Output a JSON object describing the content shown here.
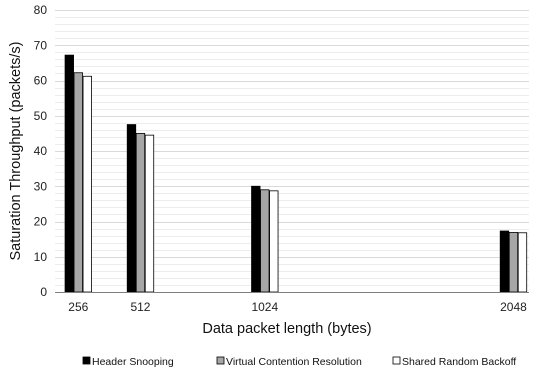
{
  "chart_data": {
    "type": "bar",
    "x": [
      256,
      512,
      1024,
      2048
    ],
    "x_tick_labels": [
      "256",
      "512",
      "1024",
      "2048"
    ],
    "x_scale": "linear",
    "xlim": [
      160,
      2112
    ],
    "series": [
      {
        "name": "Header Snooping",
        "values": [
          67.2,
          47.5,
          30.0,
          17.3
        ],
        "color": "#000000"
      },
      {
        "name": "Virtual Contention Resolution",
        "values": [
          62.2,
          45.0,
          29.0,
          16.9
        ],
        "color": "#a6a6a6"
      },
      {
        "name": "Shared Random Backoff",
        "values": [
          61.2,
          44.5,
          28.7,
          16.8
        ],
        "color": "#ffffff"
      }
    ],
    "xlabel": "Data packet length (bytes)",
    "ylabel": "Saturation Throughput (packets/s)",
    "ylim": [
      0,
      80
    ],
    "y_major_ticks": [
      0,
      10,
      20,
      30,
      40,
      50,
      60,
      70,
      80
    ],
    "y_minor_step": 2,
    "grid": true,
    "legend_position": "bottom",
    "bar_outline_color": "#000000",
    "gridline_color": "#d9d9d9"
  }
}
